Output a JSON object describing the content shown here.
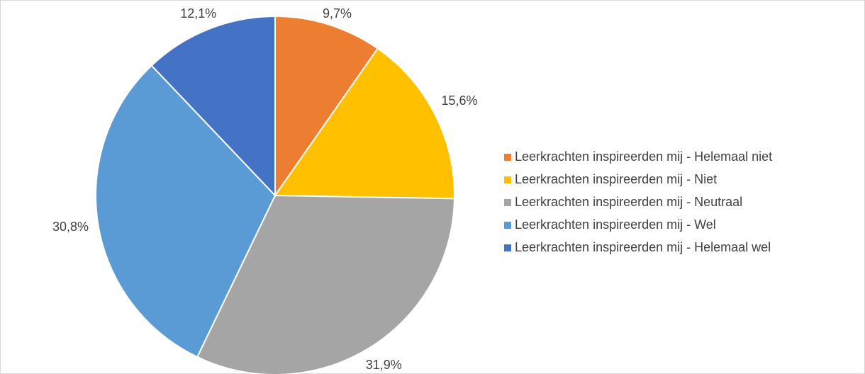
{
  "chart_data": {
    "type": "pie",
    "categories": [
      "Leerkrachten inspireerden mij - Helemaal niet",
      "Leerkrachten inspireerden mij - Niet",
      "Leerkrachten inspireerden mij - Neutraal",
      "Leerkrachten inspireerden mij - Wel",
      "Leerkrachten inspireerden mij - Helemaal wel"
    ],
    "values": [
      9.7,
      15.6,
      31.9,
      30.8,
      12.1
    ],
    "value_labels": [
      "9,7%",
      "15,6%",
      "31,9%",
      "30,8%",
      "12,1%"
    ],
    "colors": [
      "#ed7d31",
      "#ffc000",
      "#a5a5a5",
      "#5b9bd5",
      "#4472c4"
    ],
    "legend": "right"
  }
}
